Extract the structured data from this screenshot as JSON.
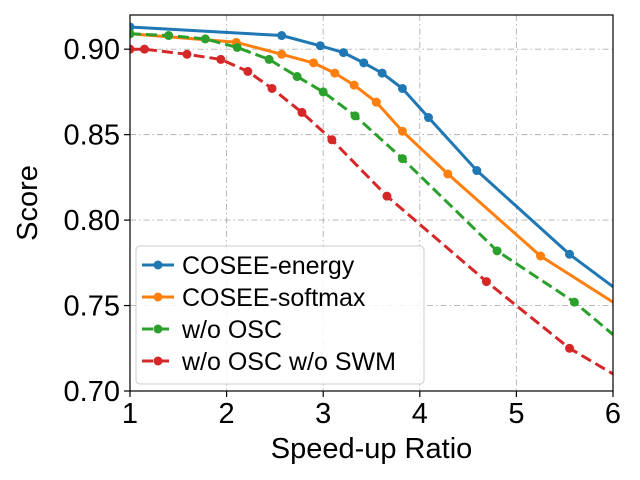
{
  "chart_data": {
    "type": "line",
    "xlabel": "Speed-up Ratio",
    "ylabel": "Score",
    "xlim": [
      1,
      6
    ],
    "ylim": [
      0.7,
      0.92
    ],
    "xticks": [
      "1",
      "2",
      "3",
      "4",
      "5",
      "6"
    ],
    "yticks": [
      "0.70",
      "0.75",
      "0.80",
      "0.85",
      "0.90"
    ],
    "grid": true,
    "legend_position": "lower-left",
    "series": [
      {
        "name": "COSEE-energy",
        "color": "#1f77b4",
        "linestyle": "solid",
        "x": [
          1.0,
          2.57,
          2.97,
          3.21,
          3.42,
          3.61,
          3.82,
          4.09,
          4.59,
          5.55,
          6.0
        ],
        "y": [
          0.913,
          0.908,
          0.902,
          0.898,
          0.892,
          0.886,
          0.877,
          0.86,
          0.829,
          0.78,
          0.761
        ]
      },
      {
        "name": "COSEE-softmax",
        "color": "#ff7f0e",
        "linestyle": "solid",
        "x": [
          1.0,
          2.1,
          2.57,
          2.9,
          3.12,
          3.32,
          3.55,
          3.82,
          4.29,
          5.25,
          6.0
        ],
        "y": [
          0.909,
          0.904,
          0.897,
          0.892,
          0.886,
          0.879,
          0.869,
          0.852,
          0.827,
          0.779,
          0.752
        ]
      },
      {
        "name": "w/o OSC",
        "color": "#2ca02c",
        "linestyle": "dashed",
        "x": [
          1.0,
          1.4,
          1.78,
          2.11,
          2.44,
          2.73,
          3.0,
          3.33,
          3.82,
          4.8,
          5.6,
          6.0
        ],
        "y": [
          0.909,
          0.908,
          0.906,
          0.901,
          0.894,
          0.884,
          0.875,
          0.861,
          0.836,
          0.782,
          0.752,
          0.733
        ]
      },
      {
        "name": "w/o OSC w/o SWM",
        "color": "#d62728",
        "linestyle": "dashed",
        "x": [
          1.0,
          1.15,
          1.59,
          1.94,
          2.22,
          2.47,
          2.78,
          3.09,
          3.66,
          4.69,
          5.55,
          6.0
        ],
        "y": [
          0.9,
          0.9,
          0.897,
          0.894,
          0.887,
          0.877,
          0.863,
          0.847,
          0.814,
          0.764,
          0.725,
          0.71
        ]
      }
    ]
  }
}
